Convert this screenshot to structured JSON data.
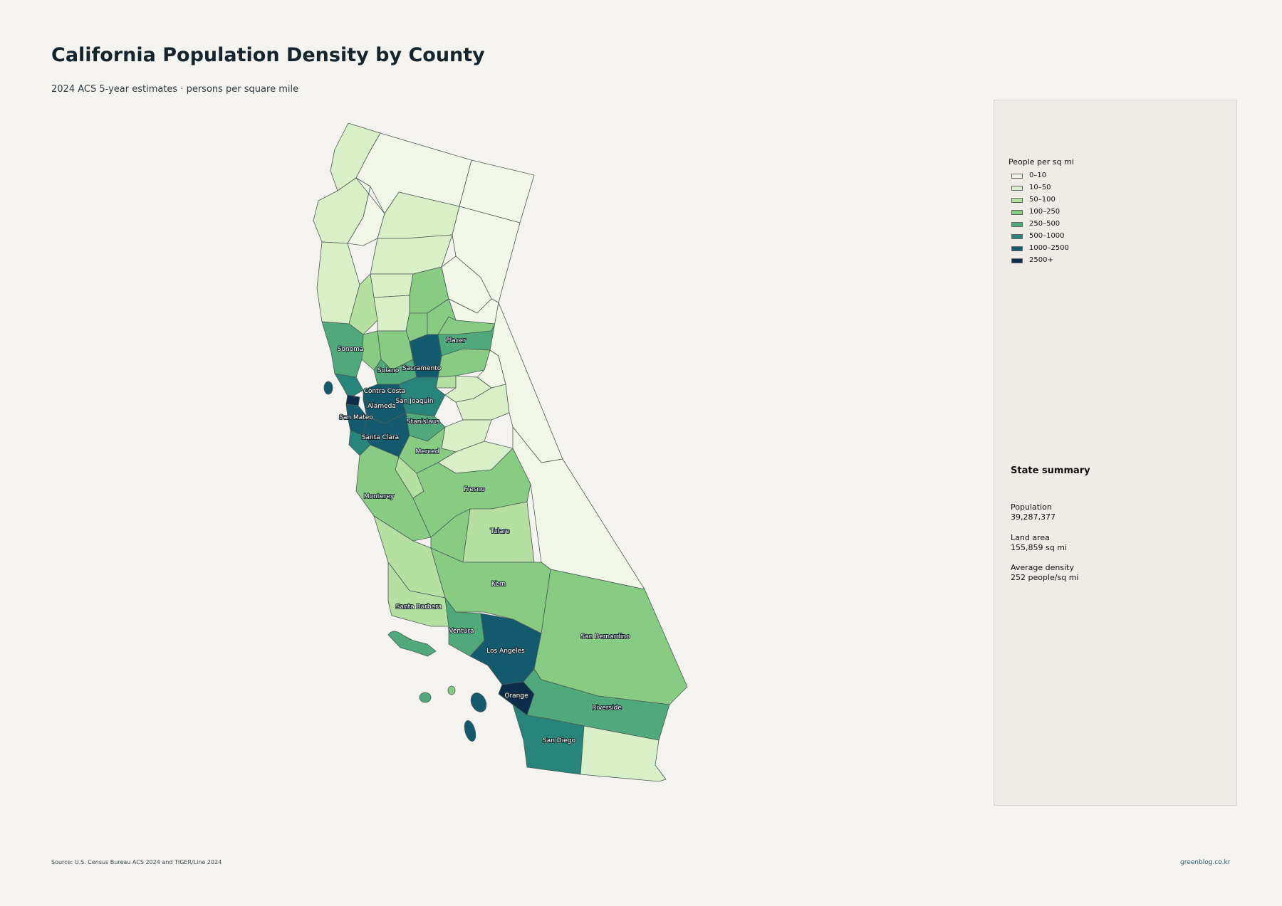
{
  "title": "California Population Density by County",
  "subtitle": "2024 ACS 5-year estimates · persons per square mile",
  "colors": {
    "background": "#f5f3ef",
    "class_0_10": "#f1f6e9",
    "class_10_50": "#d8efc8",
    "class_50_100": "#b6e0a1",
    "class_100_250": "#88cc84",
    "class_250_500": "#4fa97a",
    "class_500_1000": "#26847a",
    "class_1000_2500": "#145a6e",
    "class_2500_plus": "#0b2d4a"
  },
  "legend": {
    "title": "People per sq mi",
    "items": [
      {
        "label": "0–10",
        "color": "#f1f6e9"
      },
      {
        "label": "10–50",
        "color": "#d8efc8"
      },
      {
        "label": "50–100",
        "color": "#b6e0a1"
      },
      {
        "label": "100–250",
        "color": "#88cc84"
      },
      {
        "label": "250–500",
        "color": "#4fa97a"
      },
      {
        "label": "500–1000",
        "color": "#26847a"
      },
      {
        "label": "1000–2500",
        "color": "#145a6e"
      },
      {
        "label": "2500+",
        "color": "#0b2d4a"
      }
    ]
  },
  "summary": {
    "title": "State summary",
    "population_label": "Population",
    "population_value": "39,287,377",
    "area_label": "Land area",
    "area_value": "155,859 sq mi",
    "density_label": "Average density",
    "density_value": "252 people/sq mi"
  },
  "county_labels": [
    "Sonoma",
    "Solano",
    "Sacramento",
    "Placer",
    "Contra Costa",
    "San Joaquin",
    "Alameda",
    "San Mateo",
    "Stanislaus",
    "Santa Clara",
    "Merced",
    "Monterey",
    "Fresno",
    "Tulare",
    "Kern",
    "Santa Barbara",
    "Ventura",
    "Los Angeles",
    "San Bernardino",
    "Orange",
    "Riverside",
    "San Diego"
  ],
  "footer": {
    "source": "Source: U.S. Census Bureau ACS 2024 and TIGER/Line 2024",
    "site": "greenblog.co.kr"
  }
}
